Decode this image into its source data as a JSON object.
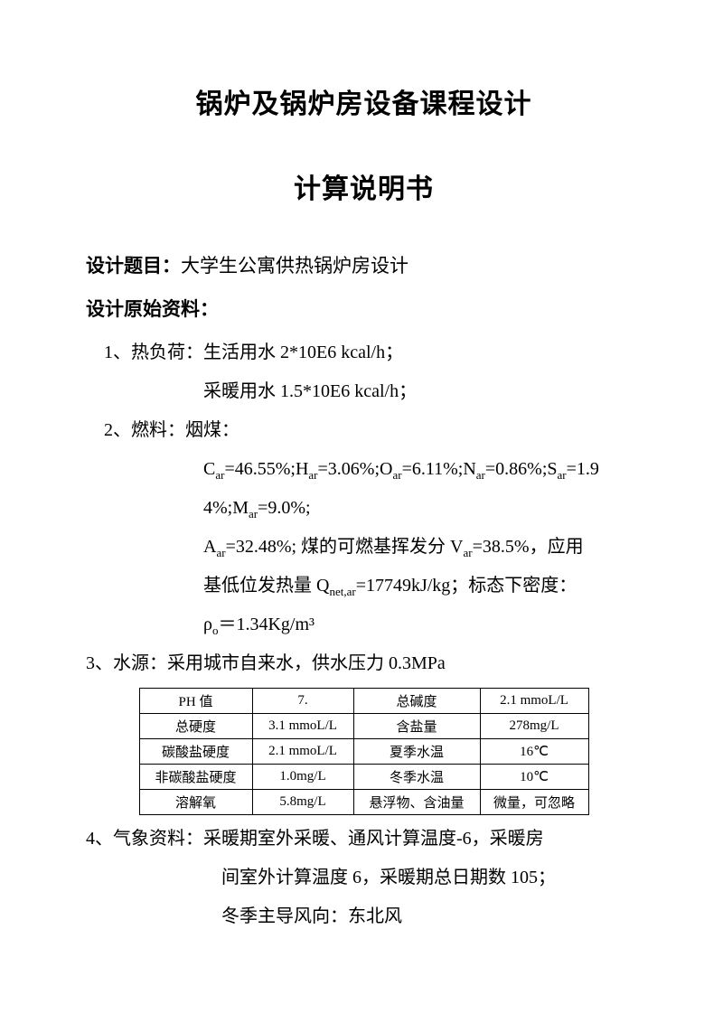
{
  "title": "锅炉及锅炉房设备课程设计",
  "subtitle": "计算说明书",
  "topic": {
    "label": "设计题目：",
    "text": "大学生公寓供热锅炉房设计"
  },
  "materials_label": "设计原始资料：",
  "item1": {
    "lead": "1、热负荷：生活用水 2*10E6 kcal/h；",
    "sub": "采暖用水 1.5*10E6 kcal/h；"
  },
  "item2": {
    "lead": "2、燃料：烟煤：",
    "line1_a": "C",
    "line1_b": "=46.55%;H",
    "line1_c": "=3.06%;O",
    "line1_d": "=6.11%;N",
    "line1_e": "=0.86%;S",
    "line1_f": "=1.9",
    "line2_a": "4%;M",
    "line2_b": "=9.0%;",
    "line3_a": "A",
    "line3_b": "=32.48%; 煤的可燃基挥发分 V",
    "line3_c": "=38.5%，应用",
    "line4_a": "基低位发热量 Q",
    "line4_b": "=17749kJ/kg；标态下密度：",
    "line5_a": "ρ",
    "line5_b": "＝1.34Kg/m³",
    "sub_ar": "ar",
    "sub_netar": "net,ar",
    "sub_o": "o"
  },
  "item3": {
    "lead": "3、水源：采用城市自来水，供水压力 0.3MPa"
  },
  "table": {
    "rows": [
      [
        "PH 值",
        "7.",
        "总碱度",
        "2.1 mmoL/L"
      ],
      [
        "总硬度",
        "3.1 mmoL/L",
        "含盐量",
        "278mg/L"
      ],
      [
        "碳酸盐硬度",
        "2.1 mmoL/L",
        "夏季水温",
        "16℃"
      ],
      [
        "非碳酸盐硬度",
        "1.0mg/L",
        "冬季水温",
        "10℃"
      ],
      [
        "溶解氧",
        "5.8mg/L",
        "悬浮物、含油量",
        "微量，可忽略"
      ]
    ]
  },
  "item4": {
    "lead": "4、气象资料：采暖期室外采暖、通风计算温度-6，采暖房",
    "sub1": "间室外计算温度 6，采暖期总日期数 105；",
    "sub2": "冬季主导风向：东北风"
  }
}
